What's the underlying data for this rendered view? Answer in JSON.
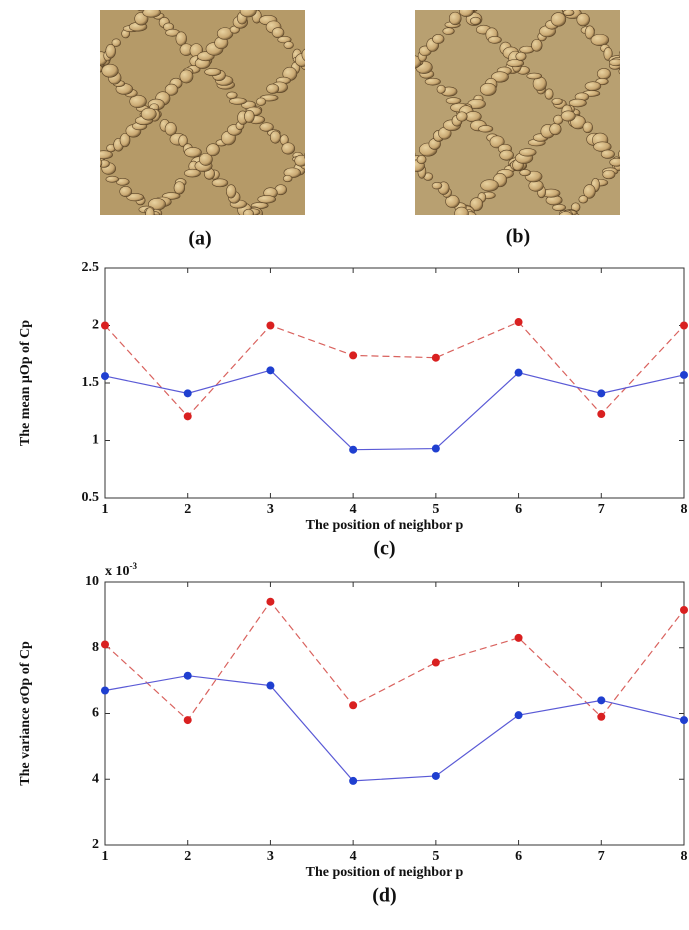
{
  "panels": [
    {
      "caption": "(a)"
    },
    {
      "caption": "(b)"
    }
  ],
  "chart_data": [
    {
      "type": "line",
      "caption": "(c)",
      "xlabel": "The position of neighbor p",
      "ylabel": "The mean μOp of Cp",
      "x": [
        1,
        2,
        3,
        4,
        5,
        6,
        7,
        8
      ],
      "xlim": [
        1,
        8
      ],
      "xticks": [
        1,
        2,
        3,
        4,
        5,
        6,
        7,
        8
      ],
      "ylim": [
        0.5,
        2.5
      ],
      "yticks": [
        0.5,
        1,
        1.5,
        2,
        2.5
      ],
      "series": [
        {
          "color": "#d9625e",
          "line_style": "dashed",
          "values": [
            2.0,
            1.21,
            2.0,
            1.74,
            1.72,
            2.03,
            1.23,
            2.0
          ]
        },
        {
          "color": "#5a5ad6",
          "line_style": "solid",
          "values": [
            1.56,
            1.41,
            1.61,
            0.92,
            0.93,
            1.59,
            1.41,
            1.57
          ]
        }
      ]
    },
    {
      "type": "line",
      "caption": "(d)",
      "xlabel": "The position of neighbor p",
      "ylabel": "The variance σOp of Cp",
      "multiplier": "x 10",
      "multiplier_exponent": "-3",
      "x": [
        1,
        2,
        3,
        4,
        5,
        6,
        7,
        8
      ],
      "xlim": [
        1,
        8
      ],
      "xticks": [
        1,
        2,
        3,
        4,
        5,
        6,
        7,
        8
      ],
      "ylim": [
        2,
        10
      ],
      "yticks": [
        2,
        4,
        6,
        8,
        10
      ],
      "series": [
        {
          "color": "#d9625e",
          "line_style": "dashed",
          "values": [
            8.1,
            5.8,
            9.4,
            6.25,
            7.55,
            8.3,
            5.9,
            9.15
          ]
        },
        {
          "color": "#5a5ad6",
          "line_style": "solid",
          "values": [
            6.7,
            7.15,
            6.85,
            3.95,
            4.1,
            5.95,
            6.4,
            5.8
          ]
        }
      ]
    }
  ]
}
